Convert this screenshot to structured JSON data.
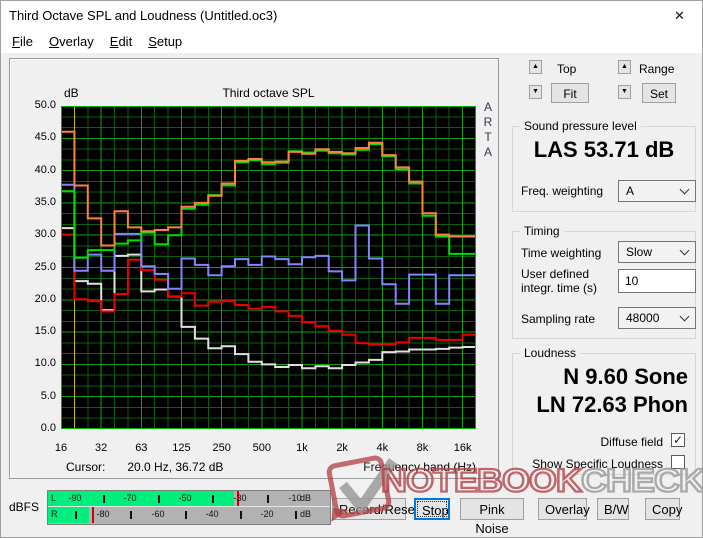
{
  "window": {
    "title": "Third Octave SPL and Loudness (Untitled.oc3)",
    "close_icon": "✕"
  },
  "menu": {
    "items": [
      {
        "label": "File"
      },
      {
        "label": "Overlay"
      },
      {
        "label": "Edit"
      },
      {
        "label": "Setup"
      }
    ]
  },
  "chart": {
    "title": "Third octave SPL",
    "y_unit_label": "dB",
    "arta_letters": [
      "A",
      "R",
      "T",
      "A"
    ],
    "cursor_label": "Cursor:",
    "cursor_value": "20.0 Hz, 36.72 dB",
    "x_axis_label": "Frequency band (Hz)"
  },
  "chart_data": {
    "type": "line",
    "style": "third-octave-staircase",
    "title": "Third octave SPL",
    "ylabel": "dB",
    "xlabel": "Frequency band (Hz)",
    "ylim": [
      0,
      50
    ],
    "y_ticks": [
      "50.0",
      "45.0",
      "40.0",
      "35.0",
      "30.0",
      "25.0",
      "20.0",
      "15.0",
      "10.0",
      "5.0",
      "0.0"
    ],
    "x": [
      "16",
      "20",
      "25",
      "31.5",
      "40",
      "50",
      "63",
      "80",
      "100",
      "125",
      "160",
      "200",
      "250",
      "315",
      "400",
      "500",
      "630",
      "800",
      "1k",
      "1.25k",
      "1.6k",
      "2k",
      "2.5k",
      "3.15k",
      "4k",
      "5k",
      "6.3k",
      "8k",
      "10k",
      "12.5k",
      "16k"
    ],
    "x_major_labels": [
      "16",
      "32",
      "63",
      "125",
      "250",
      "500",
      "1k",
      "2k",
      "4k",
      "8k",
      "16k"
    ],
    "cursor_hz": 20.0,
    "cursor_db": 36.72,
    "cursor_color": "#c9b618",
    "grid_minor": "#0b5e0b",
    "grid_major": "#12a012",
    "border_color": "#00b000",
    "plot_bg": "#000000",
    "series": [
      {
        "name": "overlay-white",
        "color": "#e0e0e0",
        "values": [
          31.1,
          22.9,
          22.5,
          18.4,
          26.8,
          27.0,
          21.3,
          21.6,
          20.5,
          15.8,
          14.0,
          12.5,
          12.8,
          11.6,
          10.4,
          10.0,
          9.6,
          9.9,
          9.4,
          9.7,
          9.4,
          9.9,
          10.3,
          10.7,
          11.9,
          12.0,
          12.3,
          12.3,
          12.4,
          12.6,
          12.7
        ]
      },
      {
        "name": "overlay-red",
        "color": "#ee0000",
        "values": [
          30.1,
          20.1,
          19.8,
          18.2,
          20.9,
          26.2,
          24.6,
          23.1,
          20.5,
          21.0,
          19.1,
          19.7,
          19.8,
          19.2,
          18.6,
          18.9,
          18.2,
          17.5,
          16.5,
          15.9,
          15.2,
          14.6,
          13.3,
          13.1,
          13.1,
          13.4,
          14.1,
          14.1,
          13.8,
          13.8,
          14.6
        ]
      },
      {
        "name": "overlay-blue",
        "color": "#8484ff",
        "values": [
          37.8,
          24.5,
          27.0,
          24.5,
          30.2,
          30.2,
          25.2,
          24.0,
          21.7,
          26.4,
          25.4,
          23.8,
          25.2,
          26.3,
          25.4,
          26.7,
          26.3,
          25.5,
          26.6,
          26.8,
          24.4,
          23.0,
          31.5,
          26.4,
          22.4,
          19.4,
          23.9,
          23.9,
          19.4,
          23.8,
          23.8
        ]
      },
      {
        "name": "overlay-green",
        "color": "#00dd00",
        "values": [
          36.8,
          26.5,
          27.7,
          27.7,
          28.7,
          29.2,
          30.4,
          28.6,
          30.0,
          34.1,
          34.7,
          36.2,
          37.7,
          41.3,
          41.6,
          41.0,
          41.2,
          43.0,
          42.8,
          43.1,
          42.7,
          42.5,
          43.2,
          44.1,
          42.2,
          40.2,
          38.0,
          33.0,
          29.8,
          27.1,
          27.1
        ]
      },
      {
        "name": "overlay-orange",
        "color": "#ff8040",
        "values": [
          46.0,
          37.7,
          32.6,
          28.4,
          33.7,
          31.2,
          30.6,
          30.8,
          31.2,
          34.4,
          35.0,
          36.1,
          38.0,
          41.5,
          41.8,
          41.3,
          41.4,
          42.9,
          42.6,
          43.3,
          42.9,
          42.7,
          43.5,
          44.3,
          42.4,
          40.5,
          38.3,
          33.4,
          30.1,
          29.8,
          29.8
        ]
      }
    ]
  },
  "controls": {
    "top_label": "Top",
    "fit_button": "Fit",
    "range_label": "Range",
    "set_button": "Set",
    "up_icon": "▲",
    "down_icon": "▼"
  },
  "spl": {
    "group_title": "Sound pressure level",
    "value": "LAS 53.71 dB",
    "freq_weighting_label": "Freq. weighting",
    "freq_weighting_value": "A"
  },
  "timing": {
    "group_title": "Timing",
    "time_weighting_label": "Time weighting",
    "time_weighting_value": "Slow",
    "integr_label_line1": "User defined",
    "integr_label_line2": "integr. time (s)",
    "integr_value": "10",
    "sampling_label": "Sampling rate",
    "sampling_value": "48000"
  },
  "loudness": {
    "group_title": "Loudness",
    "n_value": "N 9.60 Sone",
    "ln_value": "LN 72.63 Phon",
    "diffuse_label": "Diffuse field",
    "diffuse_checked": true,
    "check_icon": "✓",
    "specific_label": "Show Specific Loudness",
    "specific_checked": false
  },
  "meter": {
    "label": "dBFS",
    "unit": "dB",
    "scale_min": -100,
    "scale_max": 0,
    "rows": [
      {
        "channel": "L",
        "number_labels": [
          -90,
          -70,
          -50,
          -30,
          -10
        ],
        "tick_marks": [
          -80,
          -60,
          -40,
          -20
        ],
        "level_dbfs": -32,
        "peak_dbfs": -31
      },
      {
        "channel": "R",
        "number_labels": [
          -80,
          -60,
          -40,
          -20
        ],
        "tick_marks": [
          -90,
          -70,
          -50,
          -30,
          -10
        ],
        "level_dbfs": -85,
        "peak_dbfs": -84
      }
    ]
  },
  "buttons": [
    {
      "label": "Record/Reset",
      "focused": false
    },
    {
      "label": "Stop",
      "focused": true
    },
    {
      "label": "Pink Noise",
      "focused": false
    },
    {
      "label": "Overlay",
      "focused": false
    },
    {
      "label": "B/W",
      "focused": false
    },
    {
      "label": "Copy",
      "focused": false
    }
  ],
  "watermark": {
    "text_red": "NOTEBOOK",
    "text_gray": "CHECK",
    "red_color": "#b23e42",
    "gray_color": "#969696"
  }
}
